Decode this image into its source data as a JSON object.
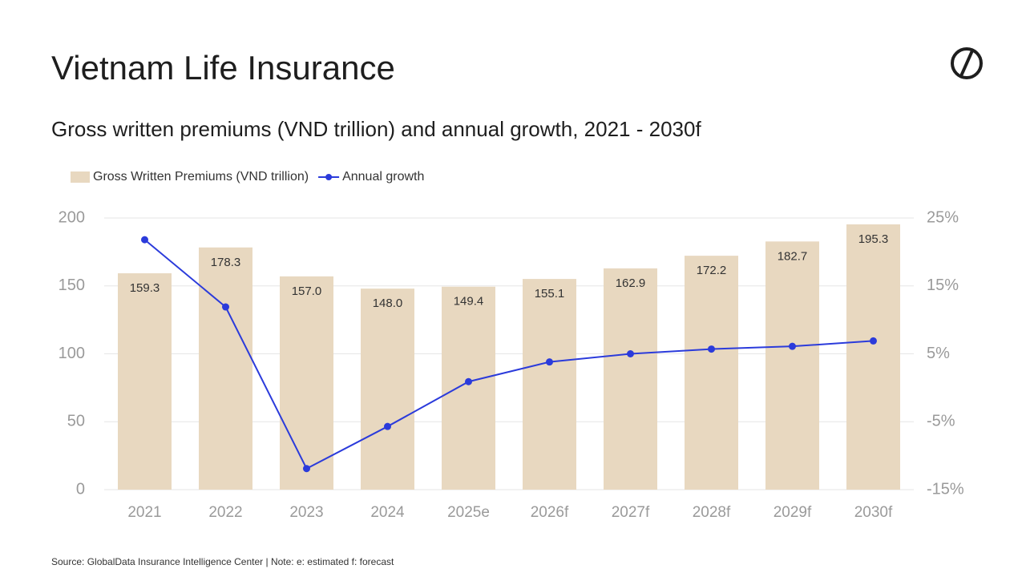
{
  "title": "Vietnam Life Insurance",
  "chart_data": {
    "type": "bar",
    "title": "Gross written premiums (VND trillion) and annual growth, 2021 - 2030f",
    "categories": [
      "2021",
      "2022",
      "2023",
      "2024",
      "2025e",
      "2026f",
      "2027f",
      "2028f",
      "2029f",
      "2030f"
    ],
    "series": [
      {
        "name": "Gross Written Premiums (VND trillion)",
        "type": "bar",
        "color": "#e8d8c0",
        "values": [
          159.3,
          178.3,
          157.0,
          148.0,
          149.4,
          155.1,
          162.9,
          172.2,
          182.7,
          195.3
        ],
        "value_labels": [
          "159.3",
          "178.3",
          "157.0",
          "148.0",
          "149.4",
          "155.1",
          "162.9",
          "172.2",
          "182.7",
          "195.3"
        ]
      },
      {
        "name": "Annual growth",
        "type": "line",
        "color": "#2b3bdb",
        "axis": "y2",
        "values": [
          21.8,
          11.9,
          -11.9,
          -5.7,
          0.9,
          3.8,
          5.0,
          5.7,
          6.1,
          6.9
        ]
      }
    ],
    "ylim": [
      0,
      200
    ],
    "yticks": [
      0,
      50,
      100,
      150,
      200
    ],
    "y2lim": [
      -15,
      25
    ],
    "y2ticks": [
      {
        "value": -15,
        "label": "-15%"
      },
      {
        "value": -5,
        "label": "-5%"
      },
      {
        "value": 5,
        "label": "5%"
      },
      {
        "value": 15,
        "label": "15%"
      },
      {
        "value": 25,
        "label": "25%"
      }
    ],
    "grid": true,
    "legend": "top-left",
    "source": "Source: GlobalData Insurance Intelligence Center | Note: e: estimated f: forecast"
  }
}
